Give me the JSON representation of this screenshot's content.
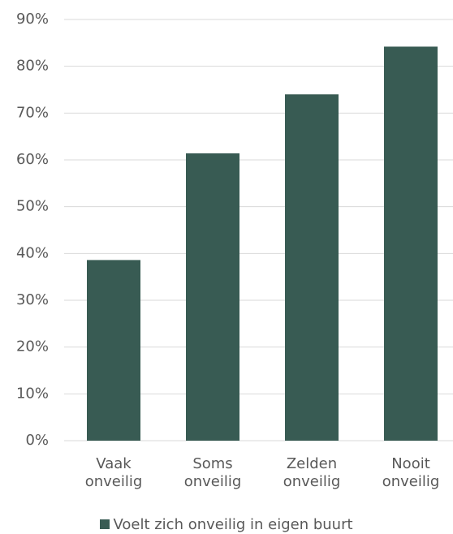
{
  "chart_data": {
    "type": "bar",
    "categories": [
      "Vaak onveilig",
      "Soms onveilig",
      "Zelden onveilig",
      "Nooit onveilig"
    ],
    "series": [
      {
        "name": "Voelt zich onveilig in eigen buurt",
        "color": "#385b53",
        "values": [
          38.6,
          61.4,
          74.0,
          84.2
        ]
      }
    ],
    "ylim": [
      0,
      90
    ],
    "yticks": [
      {
        "value": 0,
        "label": "0%"
      },
      {
        "value": 10,
        "label": "10%"
      },
      {
        "value": 20,
        "label": "20%"
      },
      {
        "value": 30,
        "label": "30%"
      },
      {
        "value": 40,
        "label": "40%"
      },
      {
        "value": 50,
        "label": "50%"
      },
      {
        "value": 60,
        "label": "60%"
      },
      {
        "value": 70,
        "label": "70%"
      },
      {
        "value": 80,
        "label": "80%"
      },
      {
        "value": 90,
        "label": "90%"
      }
    ],
    "grid": true,
    "legend": "bottom"
  }
}
